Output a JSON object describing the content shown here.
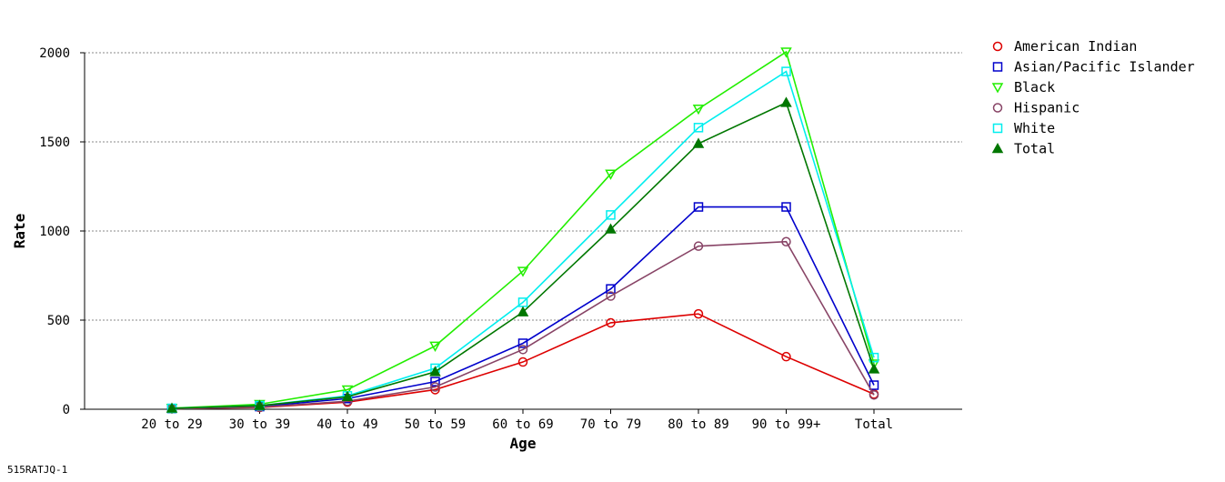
{
  "chart_data": {
    "type": "line",
    "title": "",
    "xlabel": "Age",
    "ylabel": "Rate",
    "categories": [
      "20 to 29",
      "30 to 39",
      "40 to 49",
      "50 to 59",
      "60 to 69",
      "70 to 79",
      "80 to 89",
      "90 to 99+",
      "Total"
    ],
    "ylim": [
      0,
      2000
    ],
    "yticks": [
      0,
      500,
      1000,
      1500,
      2000
    ],
    "grid": "horizontal-dotted",
    "legend_position": "top-right",
    "series": [
      {
        "name": "American Indian",
        "color": "#dd0000",
        "marker": "circle",
        "values": [
          3,
          10,
          40,
          110,
          265,
          485,
          535,
          295,
          85
        ]
      },
      {
        "name": "Asian/Pacific Islander",
        "color": "#0000cc",
        "marker": "square",
        "values": [
          4,
          15,
          60,
          155,
          370,
          675,
          1135,
          1135,
          135
        ]
      },
      {
        "name": "Black",
        "color": "#22ee00",
        "marker": "triangle-down",
        "values": [
          6,
          28,
          110,
          355,
          775,
          1320,
          1685,
          2005,
          255
        ]
      },
      {
        "name": "Hispanic",
        "color": "#884466",
        "marker": "circle",
        "values": [
          3,
          12,
          45,
          125,
          335,
          635,
          915,
          940,
          80
        ]
      },
      {
        "name": "White",
        "color": "#00eeee",
        "marker": "square",
        "values": [
          5,
          20,
          75,
          230,
          600,
          1090,
          1580,
          1895,
          290
        ]
      },
      {
        "name": "Total",
        "color": "#007700",
        "marker": "triangle-up",
        "values": [
          5,
          20,
          70,
          210,
          545,
          1010,
          1490,
          1720,
          225
        ]
      }
    ]
  },
  "footer": {
    "code": "515RATJQ-1"
  }
}
